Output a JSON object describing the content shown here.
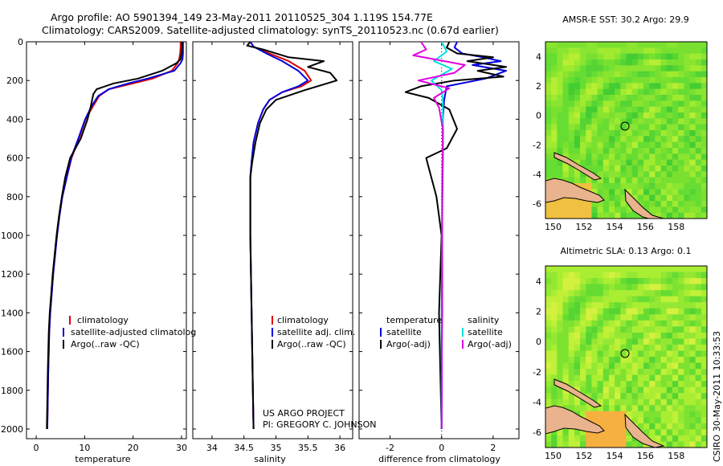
{
  "header": {
    "line1": "Argo profile: AO 5901394_149 23-May-2011 20110525_304 1.119S 154.77E",
    "line2": "Climatology: CARS2009. Satellite-adjusted climatology: synTS_20110523.nc (0.67d earlier)"
  },
  "credit": {
    "project": "US ARGO PROJECT",
    "pi": "PI: GREGORY C. JOHNSON",
    "stamp": "CSIRO 30-May-2011 10:33:53"
  },
  "colors": {
    "climatology": "#dd0000",
    "satellite": "#0000dd",
    "argo": "#000000",
    "salinity_satellite": "#00e0e0",
    "salinity_argo": "#e000e0"
  },
  "chart_data": [
    {
      "type": "line",
      "id": "temperature",
      "xlabel": "temperature",
      "ylabel": "",
      "xlim": [
        -2,
        31
      ],
      "ylim": [
        2050,
        0
      ],
      "y_reversed": true,
      "xticks": [
        0,
        10,
        20,
        30
      ],
      "yticks": [
        0,
        200,
        400,
        600,
        800,
        1000,
        1200,
        1400,
        1600,
        1800,
        2000
      ],
      "legend": [
        "climatology",
        "satellite-adjusted climatolog",
        "Argo(..raw -QC)"
      ],
      "series": [
        {
          "name": "climatology",
          "color": "#dd0000",
          "x": [
            29.8,
            29.8,
            29.7,
            29.5,
            29.2,
            28.0,
            24.0,
            20.0,
            15.0,
            13.0,
            11.8,
            10.2,
            8.8,
            7.3,
            6.3,
            5.4,
            4.8,
            4.3,
            3.9,
            3.5,
            3.2,
            2.9,
            2.7,
            2.5,
            2.3
          ],
          "y": [
            0,
            30,
            60,
            90,
            110,
            150,
            190,
            215,
            245,
            280,
            330,
            400,
            500,
            600,
            700,
            800,
            900,
            1000,
            1100,
            1200,
            1300,
            1400,
            1500,
            1700,
            2000
          ]
        },
        {
          "name": "satellite-adjusted climatolog",
          "color": "#0000dd",
          "x": [
            30.3,
            30.3,
            30.3,
            30.2,
            29.8,
            28.5,
            23.0,
            19.0,
            15.0,
            12.8,
            11.5,
            10.1,
            8.7,
            7.2,
            6.3,
            5.4,
            4.8,
            4.3,
            3.9,
            3.5,
            3.2,
            2.9,
            2.7,
            2.5,
            2.3
          ],
          "y": [
            0,
            30,
            60,
            90,
            110,
            150,
            190,
            215,
            245,
            280,
            330,
            400,
            500,
            600,
            700,
            800,
            900,
            1000,
            1100,
            1200,
            1300,
            1400,
            1500,
            1700,
            2000
          ]
        },
        {
          "name": "Argo(..raw -QC)",
          "color": "#000000",
          "x": [
            30.1,
            30.1,
            30.0,
            29.8,
            29.0,
            26.0,
            21.0,
            16.0,
            12.5,
            11.8,
            11.3,
            10.6,
            9.2,
            7.0,
            6.0,
            5.3,
            4.7,
            4.2,
            3.8,
            3.4,
            3.1,
            2.8,
            2.6,
            2.4,
            2.2
          ],
          "y": [
            0,
            30,
            60,
            90,
            110,
            150,
            190,
            215,
            245,
            270,
            330,
            400,
            500,
            600,
            700,
            800,
            900,
            1000,
            1100,
            1200,
            1300,
            1400,
            1500,
            1700,
            2000
          ]
        }
      ]
    },
    {
      "type": "line",
      "id": "salinity",
      "xlabel": "salinity",
      "ylabel": "",
      "xlim": [
        33.7,
        36.2
      ],
      "ylim": [
        2050,
        0
      ],
      "y_reversed": true,
      "xticks": [
        34,
        34.5,
        35,
        35.5,
        36
      ],
      "legend": [
        "climatology",
        "satellite adj. clim.",
        "Argo(..raw -QC)"
      ],
      "series": [
        {
          "name": "climatology",
          "color": "#dd0000",
          "x": [
            34.6,
            34.65,
            34.9,
            35.2,
            35.45,
            35.55,
            35.4,
            35.1,
            34.9,
            34.8,
            34.72,
            34.65,
            34.62,
            34.6,
            34.6,
            34.6,
            34.61,
            34.62,
            34.63,
            34.64,
            34.65
          ],
          "y": [
            0,
            25,
            60,
            100,
            150,
            200,
            230,
            260,
            300,
            350,
            420,
            520,
            620,
            700,
            800,
            1000,
            1200,
            1400,
            1600,
            1800,
            2000
          ]
        },
        {
          "name": "satellite adj. clim.",
          "color": "#0000dd",
          "x": [
            34.6,
            34.65,
            34.85,
            35.1,
            35.35,
            35.5,
            35.35,
            35.1,
            34.9,
            34.8,
            34.72,
            34.65,
            34.62,
            34.6,
            34.6,
            34.6,
            34.61,
            34.62,
            34.63,
            34.64,
            34.65
          ],
          "y": [
            0,
            25,
            60,
            100,
            150,
            200,
            230,
            260,
            300,
            350,
            420,
            520,
            620,
            700,
            800,
            1000,
            1200,
            1400,
            1600,
            1800,
            2000
          ]
        },
        {
          "name": "Argo(..raw -QC)",
          "color": "#000000",
          "x": [
            34.6,
            34.55,
            34.8,
            35.2,
            35.75,
            35.5,
            35.85,
            35.95,
            35.45,
            35.0,
            34.85,
            34.75,
            34.68,
            34.63,
            34.6,
            34.6,
            34.6,
            34.61,
            34.62,
            34.63,
            34.64,
            34.65
          ],
          "y": [
            0,
            20,
            40,
            80,
            100,
            130,
            160,
            200,
            250,
            300,
            350,
            420,
            520,
            620,
            700,
            800,
            1000,
            1200,
            1400,
            1600,
            1800,
            2000
          ]
        }
      ]
    },
    {
      "type": "line",
      "id": "difference",
      "xlabel": "difference from climatology",
      "ylabel": "",
      "xlim": [
        -3.2,
        3.0
      ],
      "ylim": [
        2050,
        0
      ],
      "y_reversed": true,
      "xticks": [
        -2,
        0,
        2
      ],
      "legend_temperature_title": "temperature",
      "legend_salinity_title": "salinity",
      "legend": [
        "satellite",
        "Argo(-adj)",
        "satellite",
        "Argo(-adj)"
      ],
      "series": [
        {
          "name": "temperature satellite",
          "color": "#0000dd",
          "x": [
            0.6,
            0.5,
            0.8,
            1.6,
            2.3,
            1.2,
            2.5,
            1.7,
            0.2,
            0.1,
            0.05,
            0.05,
            0.05,
            0.03,
            0.02,
            0.02,
            0.02,
            0.01,
            0.01,
            0.0
          ],
          "y": [
            0,
            30,
            60,
            80,
            100,
            120,
            150,
            190,
            230,
            300,
            400,
            500,
            600,
            800,
            1000,
            1200,
            1400,
            1600,
            1800,
            2000
          ]
        },
        {
          "name": "temperature Argo(-adj)",
          "color": "#000000",
          "x": [
            0.3,
            0.2,
            0.6,
            2.0,
            1.0,
            2.5,
            1.4,
            2.4,
            0.5,
            -0.8,
            -1.4,
            -0.5,
            0.3,
            0.6,
            0.2,
            -0.6,
            -0.4,
            -0.2,
            -0.1,
            0.0,
            -0.1,
            -0.05,
            0.0
          ],
          "y": [
            0,
            30,
            60,
            80,
            100,
            130,
            150,
            180,
            200,
            230,
            260,
            290,
            350,
            450,
            550,
            600,
            700,
            800,
            900,
            1000,
            1400,
            1700,
            2000
          ]
        },
        {
          "name": "salinity satellite",
          "color": "#00e0e0",
          "x": [
            0.0,
            0.2,
            -0.3,
            0.4,
            -0.4,
            0.0,
            0.05,
            0.05,
            0.03,
            0.02,
            0.01,
            0.0,
            0.0,
            0.0
          ],
          "y": [
            0,
            50,
            100,
            140,
            200,
            250,
            300,
            500,
            700,
            900,
            1200,
            1500,
            1800,
            2000
          ]
        },
        {
          "name": "salinity Argo(-adj)",
          "color": "#e000e0",
          "x": [
            -0.8,
            -0.6,
            -1.1,
            0.9,
            0.5,
            -0.9,
            0.3,
            -0.3,
            -0.1,
            0.05,
            0.02,
            0.0
          ],
          "y": [
            0,
            40,
            70,
            120,
            160,
            200,
            240,
            290,
            340,
            450,
            800,
            2000
          ]
        }
      ]
    },
    {
      "type": "heatmap",
      "id": "sst_map",
      "title": "AMSR-E SST: 30.2 Argo: 29.9",
      "xlim": [
        149.5,
        160
      ],
      "ylim": [
        -7,
        5
      ],
      "xticks": [
        150,
        152,
        154,
        156,
        158
      ],
      "yticks": [
        -6,
        -4,
        -2,
        0,
        2,
        4
      ],
      "marker": {
        "lon": 154.77,
        "lat": -1.119
      }
    },
    {
      "type": "heatmap",
      "id": "sla_map",
      "title": "Altimetric SLA: 0.13 Argo: 0.1",
      "xlim": [
        149.5,
        160
      ],
      "ylim": [
        -7,
        5
      ],
      "xticks": [
        150,
        152,
        154,
        156,
        158
      ],
      "yticks": [
        -6,
        -4,
        -2,
        0,
        2,
        4
      ],
      "marker": {
        "lon": 154.77,
        "lat": -1.119
      }
    }
  ]
}
